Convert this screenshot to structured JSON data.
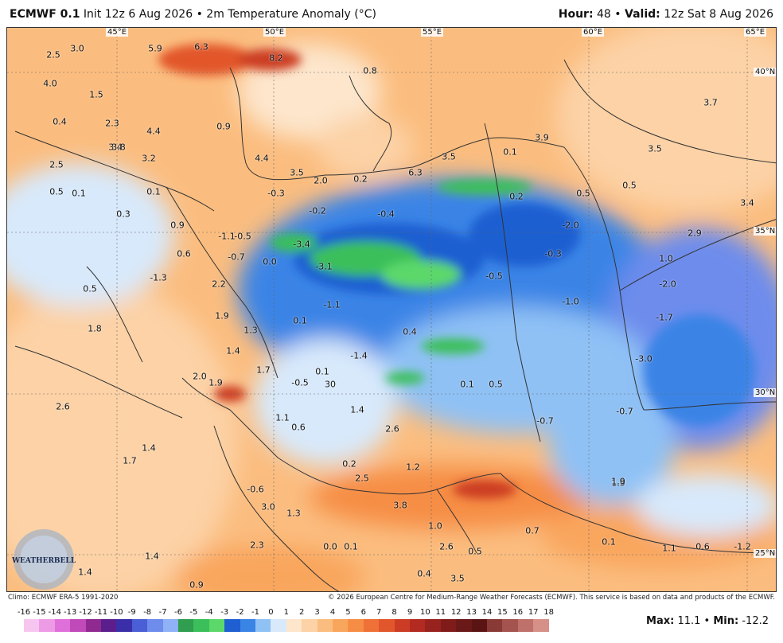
{
  "header": {
    "model": "ECMWF 0.1",
    "degree_mark": "°",
    "init_text": "Init 12z 6 Aug 2026",
    "bullet": "•",
    "field": "2m Temperature Anomaly (°C)",
    "hour_label": "Hour:",
    "hour_value": "48",
    "valid_label": "Valid:",
    "valid_value": "12z Sat 8 Aug 2026"
  },
  "coordinates": {
    "lon": [
      "45°E",
      "50°E",
      "55°E",
      "60°E",
      "65°E"
    ],
    "lat": [
      "40°N",
      "35°N",
      "30°N",
      "25°N"
    ]
  },
  "anomaly_labels": [
    "2.5",
    "3.0",
    "5.9",
    "6.3",
    "8.2",
    "4.0",
    "1.5",
    "0.8",
    "0.4",
    "2.3",
    "4.4",
    "0.9",
    "3.4",
    "3.7",
    "3.8",
    "3.2",
    "2.5",
    "4.4",
    "3.5",
    "2.0",
    "0.2",
    "6.3",
    "3.5",
    "0.1",
    "3.9",
    "3.5",
    "0.5",
    "0.1",
    "0.1",
    "-0.3",
    "-0.2",
    "-0.4",
    "0.2",
    "0.5",
    "0.5",
    "3.4",
    "0.3",
    "0.9",
    "-1.1",
    "-3.4",
    "-2.0",
    "2.9",
    "-0.5",
    "-0.7",
    "0.6",
    "0.0",
    "-3.1",
    "-0.3",
    "1.0",
    "-1.3",
    "2.2",
    "-0.5",
    "-2.0",
    "0.5",
    "-1.1",
    "-1.0",
    "1.8",
    "1.9",
    "0.1",
    "1.3",
    "0.4",
    "-1.7",
    "1.4",
    "-1.4",
    "-3.0",
    "1.7",
    "0.1",
    "2.0",
    "1.9",
    "-0.5",
    "0.1",
    "0.5",
    "30",
    "2.6",
    "1.1",
    "1.4",
    "0.6",
    "2.6",
    "-0.7",
    "-0.7",
    "1.4",
    "1.7",
    "0.2",
    "1.2",
    "2.5",
    "1.9",
    "-0.6",
    "3.8",
    "1.9",
    "3.0",
    "1.3",
    "0.1",
    "1.0",
    "0.7",
    "2.3",
    "0.0",
    "2.6",
    "0.5",
    "0.1",
    "1.1",
    "0.6",
    "-1.2",
    "1.4",
    "1.4",
    "0.4",
    "3.5",
    "0.9"
  ],
  "footer": {
    "climo": "Climo: ECMWF ERA-5 1991-2020",
    "copyright": "© 2026 European Centre for Medium-Range Weather Forecasts (ECMWF). This service is based on data and products of the ECMWF."
  },
  "colorbar": {
    "ticks": [
      "-16",
      "-15",
      "-14",
      "-13",
      "-12",
      "-11",
      "-10",
      "-9",
      "-8",
      "-7",
      "-6",
      "-5",
      "-4",
      "-3",
      "-2",
      "-1",
      "0",
      "1",
      "2",
      "3",
      "4",
      "5",
      "6",
      "7",
      "8",
      "9",
      "10",
      "11",
      "12",
      "13",
      "14",
      "15",
      "16",
      "17",
      "18"
    ],
    "colors": [
      "#f7c6f0",
      "#ee9be6",
      "#e070d9",
      "#c04ab9",
      "#902a90",
      "#5b1e8c",
      "#3a2fa8",
      "#4a5fd6",
      "#6d8cec",
      "#8fb1f5",
      "#2f9e4f",
      "#3bbf5a",
      "#5cd86a",
      "#1f5fd1",
      "#3a84e6",
      "#8fc1f5",
      "#d8e9fb",
      "#fde6cc",
      "#fcd2a6",
      "#fbbd7f",
      "#f9a65d",
      "#f68d45",
      "#ef7137",
      "#e2562c",
      "#cc3c24",
      "#b22a20",
      "#98221d",
      "#7f1c1a",
      "#6a1818",
      "#5a1414",
      "#8a3a36",
      "#a4534e",
      "#be716b",
      "#d69088"
    ]
  },
  "stats": {
    "max_label": "Max:",
    "max_value": "11.1",
    "bullet": "•",
    "min_label": "Min:",
    "min_value": "-12.2"
  },
  "logo": {
    "text": "WEATHERBELL"
  }
}
